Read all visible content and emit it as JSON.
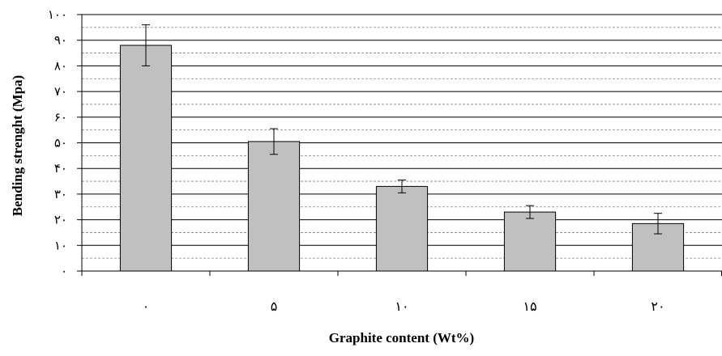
{
  "chart_data": {
    "type": "bar",
    "title": "",
    "xlabel": "Graphite content (Wt%)",
    "ylabel": "Bending strenght (Mpa)",
    "categories": [
      "٠",
      "۵",
      "١٠",
      "١۵",
      "٢٠"
    ],
    "values": [
      88,
      50.5,
      33,
      23,
      18.5
    ],
    "error": [
      8,
      5,
      2.5,
      2.5,
      4
    ],
    "ylim": [
      0,
      100
    ],
    "yticks": [
      0,
      10,
      20,
      30,
      40,
      50,
      60,
      70,
      80,
      90,
      100
    ],
    "ytick_labels": [
      "٠",
      "١٠",
      "٢٠",
      "٣٠",
      "۴٠",
      "۵٠",
      "۶٠",
      "٧٠",
      "٨٠",
      "٩٠",
      "١٠٠"
    ],
    "grid": "horizontal, solid at major ticks, dashed at minor",
    "bar_color": "#c0c0c0",
    "legend": "none"
  }
}
